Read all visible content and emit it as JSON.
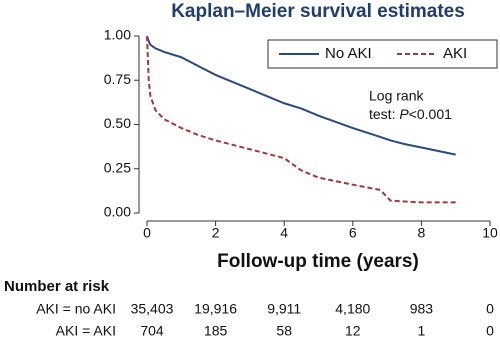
{
  "chart_data": {
    "type": "line",
    "title": "Kaplan–Meier survival estimates",
    "x_label": "Follow-up time (years)",
    "x": [
      0,
      0.05,
      0.1,
      0.25,
      0.5,
      1,
      1.5,
      2,
      3,
      4,
      4.5,
      5,
      6,
      6.8,
      7.1,
      7.5,
      8,
      9
    ],
    "series": [
      {
        "name": "No AKI",
        "color": "#2b4a7c",
        "dashed": false,
        "values": [
          1,
          0.97,
          0.95,
          0.93,
          0.91,
          0.88,
          0.83,
          0.78,
          0.7,
          0.62,
          0.59,
          0.55,
          0.48,
          0.43,
          0.41,
          0.39,
          0.37,
          0.33
        ]
      },
      {
        "name": "AKI",
        "color": "#9b3b3b",
        "dashed": true,
        "values": [
          1,
          0.75,
          0.66,
          0.58,
          0.53,
          0.48,
          0.44,
          0.41,
          0.36,
          0.31,
          0.24,
          0.2,
          0.16,
          0.13,
          0.07,
          0.065,
          0.06,
          0.06
        ]
      }
    ],
    "xlim": [
      0,
      10
    ],
    "xticks": [
      0,
      2,
      4,
      6,
      8,
      10
    ],
    "ylim": [
      0,
      1
    ],
    "yticks": [
      {
        "value": 0,
        "label": "0.00"
      },
      {
        "value": 0.25,
        "label": "0.25"
      },
      {
        "value": 0.5,
        "label": "0.50"
      },
      {
        "value": 0.75,
        "label": "0.75"
      },
      {
        "value": 1,
        "label": "1.00"
      }
    ],
    "legend": "top-right",
    "annotation": [
      "Log rank",
      "test: ",
      "P",
      "<0.001"
    ],
    "risk_table": {
      "title": "Number at risk",
      "rows": [
        {
          "label": "AKI = no AKI",
          "values": [
            "35,403",
            "19,916",
            "9,911",
            "4,180",
            "983",
            "0"
          ]
        },
        {
          "label": "AKI = AKI",
          "values": [
            "704",
            "185",
            "58",
            "12",
            "1",
            "0"
          ]
        }
      ]
    }
  }
}
